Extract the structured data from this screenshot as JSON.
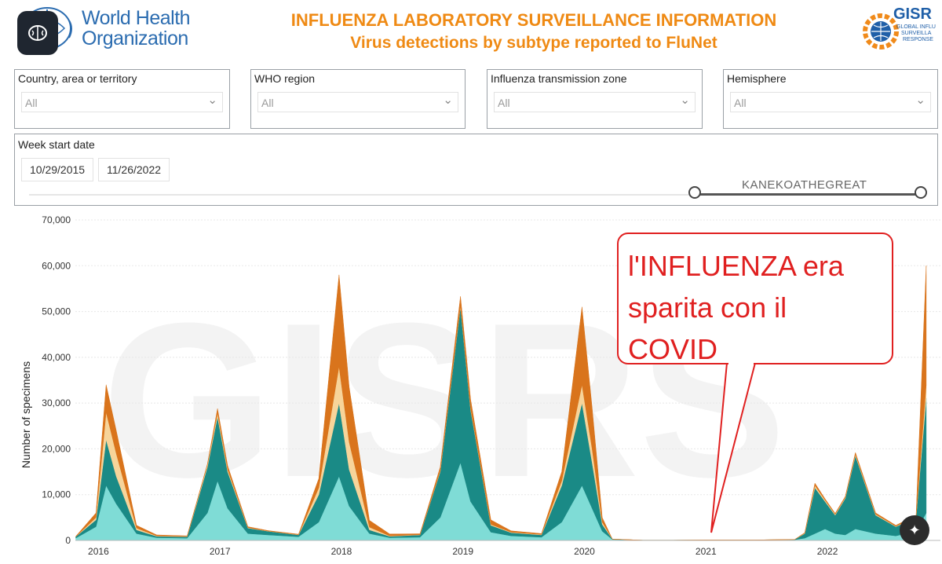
{
  "header": {
    "org_name_line1": "World Health",
    "org_name_line2": "Organization",
    "title_line1": "INFLUENZA LABORATORY SURVEILLANCE INFORMATION",
    "title_line2": "Virus detections by subtype reported to FluNet",
    "gisrs_label": "GISR",
    "gisrs_sub1": "GLOBAL INFLU",
    "gisrs_sub2": "SURVEILLA",
    "gisrs_sub3": "RESPONSE"
  },
  "filters": [
    {
      "label": "Country, area or territory",
      "value": "All"
    },
    {
      "label": "WHO region",
      "value": "All"
    },
    {
      "label": "Influenza transmission zone",
      "value": "All"
    },
    {
      "label": "Hemisphere",
      "value": "All"
    }
  ],
  "date_filter": {
    "label": "Week start date",
    "start": "10/29/2015",
    "end": "11/26/2022",
    "overlay_text": "KANEKOATHEGREAT"
  },
  "annotation": {
    "line1": "l'INFLUENZA era",
    "line2": "sparita con il",
    "line3": "COVID"
  },
  "colors": {
    "title": "#ef8a14",
    "who_blue": "#2b6cb0",
    "bubble_red": "#e02020",
    "series_light_teal": "#7fdcd6",
    "series_dark_teal": "#1a8a86",
    "series_light_orange": "#f7d49a",
    "series_orange": "#d9741c"
  },
  "icons": {
    "brain": "brain-icon",
    "chevron": "chevron-down-icon",
    "magic": "magic-wand-icon"
  },
  "chart_data": {
    "type": "area",
    "title": "",
    "ylabel": "Number of specimens",
    "xlabel": "",
    "ylim": [
      0,
      70000
    ],
    "yticks": [
      "0",
      "10,000",
      "20,000",
      "30,000",
      "40,000",
      "50,000",
      "60,000",
      "70,000"
    ],
    "xticks": [
      "2016",
      "2017",
      "2018",
      "2019",
      "2020",
      "2021",
      "2022"
    ],
    "grid": true,
    "stacked": true,
    "x": [
      "2015-11",
      "2016-01",
      "2016-02",
      "2016-03",
      "2016-05",
      "2016-07",
      "2016-10",
      "2016-12",
      "2017-01",
      "2017-02",
      "2017-04",
      "2017-06",
      "2017-09",
      "2017-11",
      "2018-01",
      "2018-02",
      "2018-04",
      "2018-06",
      "2018-09",
      "2018-11",
      "2019-01",
      "2019-02",
      "2019-04",
      "2019-06",
      "2019-09",
      "2019-11",
      "2020-01",
      "2020-02",
      "2020-03",
      "2020-04",
      "2020-07",
      "2020-10",
      "2021-01",
      "2021-06",
      "2021-10",
      "2021-11",
      "2021-12",
      "2022-01",
      "2022-02",
      "2022-03",
      "2022-04",
      "2022-06",
      "2022-08",
      "2022-10",
      "2022-11"
    ],
    "series": [
      {
        "name": "",
        "values": [
          500,
          3000,
          12000,
          8000,
          1500,
          600,
          500,
          6000,
          13000,
          7000,
          1500,
          1200,
          800,
          4000,
          14000,
          7500,
          1500,
          600,
          700,
          5000,
          17000,
          8500,
          1800,
          1000,
          700,
          4000,
          12000,
          7000,
          2000,
          200,
          50,
          50,
          100,
          100,
          150,
          500,
          1500,
          2500,
          1500,
          1200,
          2500,
          1500,
          1000,
          2000,
          6000
        ]
      },
      {
        "name": "",
        "values": [
          300,
          1500,
          10000,
          6000,
          800,
          300,
          300,
          10000,
          14000,
          8000,
          1200,
          800,
          400,
          6000,
          16000,
          8000,
          800,
          300,
          500,
          10000,
          34000,
          20000,
          1500,
          700,
          500,
          8000,
          18000,
          10000,
          1500,
          100,
          0,
          0,
          0,
          0,
          50,
          1000,
          10000,
          6000,
          4000,
          8000,
          16000,
          4000,
          2000,
          3000,
          25000
        ]
      },
      {
        "name": "",
        "values": [
          0,
          500,
          6000,
          5000,
          400,
          100,
          100,
          500,
          800,
          500,
          100,
          50,
          50,
          1500,
          8000,
          6000,
          600,
          100,
          50,
          200,
          300,
          300,
          200,
          100,
          100,
          1000,
          4000,
          3000,
          500,
          0,
          0,
          0,
          0,
          0,
          0,
          100,
          500,
          300,
          200,
          200,
          300,
          200,
          100,
          200,
          3000
        ]
      },
      {
        "name": "",
        "values": [
          100,
          1000,
          6000,
          5000,
          600,
          200,
          100,
          200,
          1000,
          800,
          200,
          100,
          100,
          2000,
          20000,
          12000,
          1500,
          400,
          200,
          800,
          2000,
          2000,
          1000,
          300,
          200,
          2000,
          17000,
          9000,
          1000,
          0,
          0,
          0,
          0,
          0,
          0,
          100,
          500,
          300,
          200,
          200,
          400,
          300,
          200,
          300,
          26000
        ]
      }
    ]
  }
}
